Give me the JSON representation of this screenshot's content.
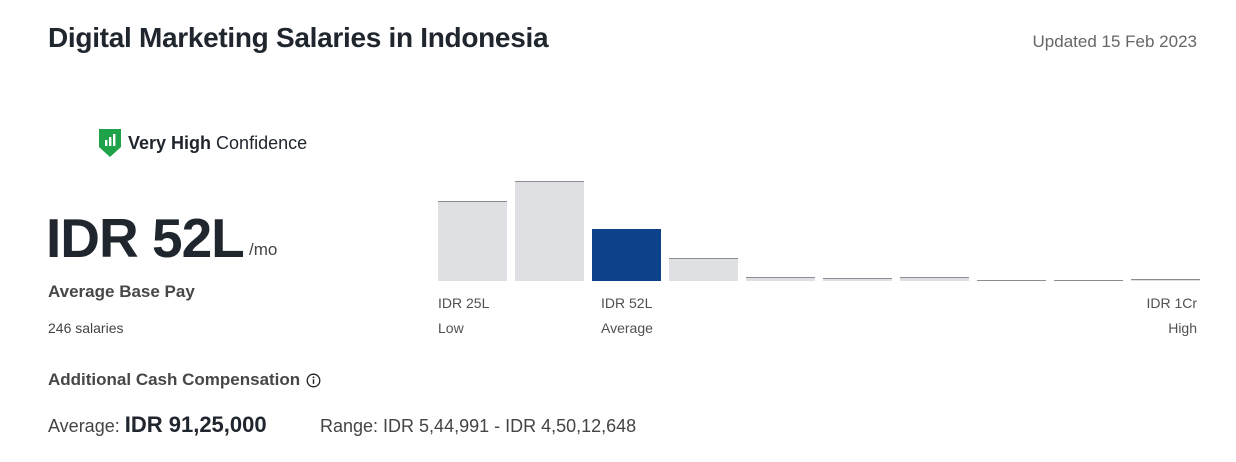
{
  "header": {
    "title": "Digital Marketing Salaries in Indonesia",
    "updated": "Updated 15 Feb 2023"
  },
  "confidence": {
    "level": "Very High",
    "label": "Confidence"
  },
  "base_pay": {
    "amount": "IDR 52L",
    "unit": "/mo",
    "label": "Average Base Pay",
    "count": "246 salaries"
  },
  "histogram": {
    "type": "bar",
    "values": [
      80,
      100,
      52,
      23,
      4,
      3,
      4,
      1,
      1,
      2
    ],
    "color": "#dfe0e3",
    "highlight_color": "#0d4189",
    "highlight_index": 2,
    "labels": [
      {
        "value": "IDR 25L",
        "caption": "Low"
      },
      {
        "value": "IDR 52L",
        "caption": "Average"
      },
      {
        "value": "IDR 1Cr",
        "caption": "High"
      }
    ]
  },
  "additional": {
    "title": "Additional Cash Compensation",
    "average_label": "Average:",
    "average": "IDR 91,25,000",
    "range": "Range: IDR 5,44,991 - IDR 4,50,12,648"
  }
}
